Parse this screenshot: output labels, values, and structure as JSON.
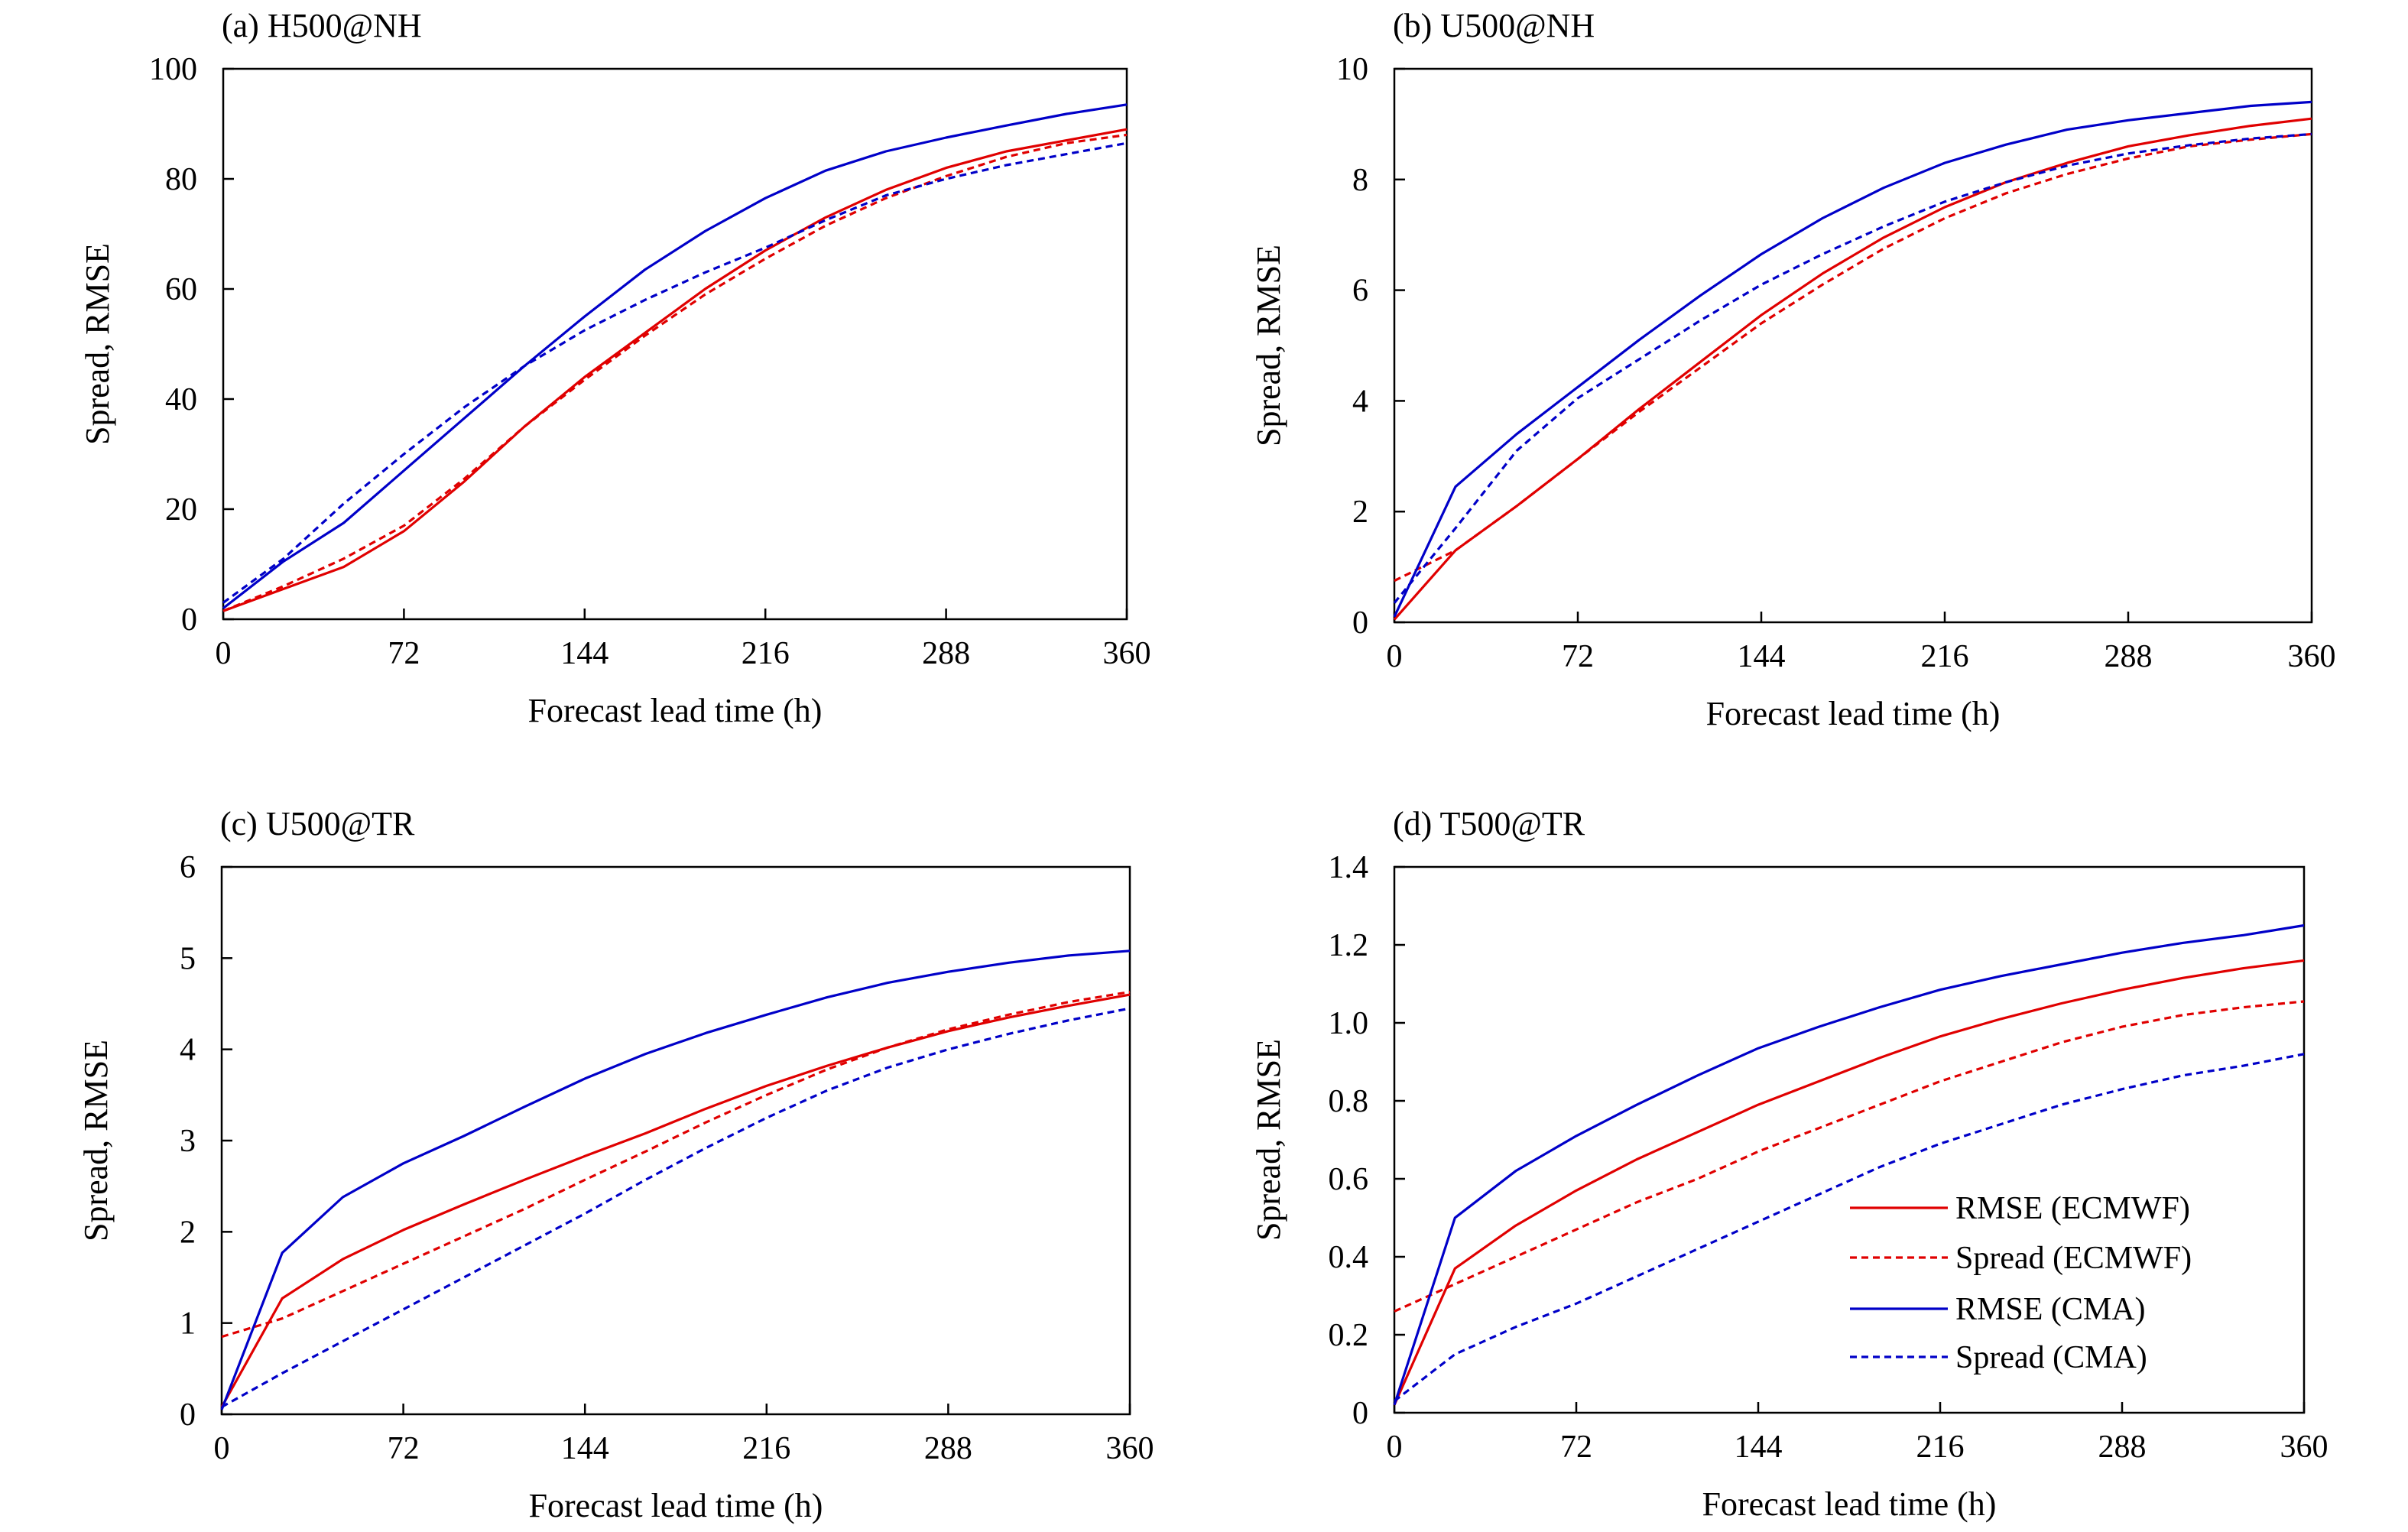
{
  "legend": [
    {
      "key": "rmse_ecmwf",
      "label": "RMSE (ECMWF)",
      "color": "#e00000",
      "dashed": false
    },
    {
      "key": "spread_ecmwf",
      "label": "Spread (ECMWF)",
      "color": "#e00000",
      "dashed": true
    },
    {
      "key": "rmse_cma",
      "label": "RMSE (CMA)",
      "color": "#0000c8",
      "dashed": false
    },
    {
      "key": "spread_cma",
      "label": "Spread (CMA)",
      "color": "#0000c8",
      "dashed": true
    }
  ],
  "chart_data": [
    {
      "type": "line",
      "title": "(a) H500@NH",
      "xlabel": "Forecast lead time (h)",
      "ylabel": "Spread, RMSE",
      "xlim": [
        0,
        360
      ],
      "ylim": [
        0,
        100
      ],
      "xticks": [
        "0",
        "72",
        "144",
        "216",
        "288",
        "360"
      ],
      "yticks": [
        "0",
        "20",
        "40",
        "60",
        "80",
        "100"
      ],
      "grid": false,
      "x": [
        0,
        24,
        48,
        72,
        96,
        120,
        144,
        168,
        192,
        216,
        240,
        264,
        288,
        312,
        336,
        360
      ],
      "series": [
        {
          "name": "RMSE (ECMWF)",
          "values": [
            1.5,
            5.5,
            9.5,
            16,
            25,
            35,
            44,
            52,
            60,
            67,
            73,
            78,
            82,
            85,
            87,
            89
          ]
        },
        {
          "name": "Spread (ECMWF)",
          "values": [
            1.5,
            6,
            11,
            17,
            25.5,
            35,
            43.5,
            51.5,
            59,
            65.5,
            71.5,
            76.5,
            80.5,
            84,
            86.5,
            88
          ]
        },
        {
          "name": "RMSE (CMA)",
          "values": [
            2,
            10.5,
            17.5,
            27,
            36.5,
            46,
            55,
            63.5,
            70.5,
            76.5,
            81.5,
            85,
            87.5,
            89.7,
            91.8,
            93.5
          ]
        },
        {
          "name": "Spread (CMA)",
          "values": [
            3,
            11,
            21,
            30,
            38.5,
            46,
            52.5,
            58,
            63,
            67.5,
            72.5,
            77,
            80,
            82.5,
            84.5,
            86.5
          ]
        }
      ]
    },
    {
      "type": "line",
      "title": "(b) U500@NH",
      "xlabel": "Forecast lead time (h)",
      "ylabel": "Spread, RMSE",
      "xlim": [
        0,
        360
      ],
      "ylim": [
        0,
        10
      ],
      "xticks": [
        "0",
        "72",
        "144",
        "216",
        "288",
        "360"
      ],
      "yticks": [
        "0",
        "2",
        "4",
        "6",
        "8",
        "10"
      ],
      "grid": false,
      "x": [
        0,
        24,
        48,
        72,
        96,
        120,
        144,
        168,
        192,
        216,
        240,
        264,
        288,
        312,
        336,
        360
      ],
      "series": [
        {
          "name": "RMSE (ECMWF)",
          "values": [
            0.05,
            1.3,
            2.1,
            2.95,
            3.85,
            4.7,
            5.55,
            6.3,
            6.95,
            7.5,
            7.95,
            8.3,
            8.6,
            8.8,
            8.97,
            9.1
          ]
        },
        {
          "name": "Spread (ECMWF)",
          "values": [
            0.75,
            1.3,
            2.1,
            2.95,
            3.8,
            4.6,
            5.4,
            6.1,
            6.75,
            7.3,
            7.75,
            8.1,
            8.38,
            8.6,
            8.72,
            8.82
          ]
        },
        {
          "name": "RMSE (CMA)",
          "values": [
            0.1,
            2.45,
            3.4,
            4.25,
            5.1,
            5.9,
            6.65,
            7.3,
            7.85,
            8.3,
            8.63,
            8.9,
            9.07,
            9.2,
            9.33,
            9.4
          ]
        },
        {
          "name": "Spread (CMA)",
          "values": [
            0.35,
            1.7,
            3.1,
            4.05,
            4.75,
            5.45,
            6.1,
            6.65,
            7.15,
            7.6,
            7.95,
            8.25,
            8.47,
            8.62,
            8.74,
            8.82
          ]
        }
      ]
    },
    {
      "type": "line",
      "title": "(c) U500@TR",
      "xlabel": "Forecast lead time (h)",
      "ylabel": "Spread, RMSE",
      "xlim": [
        0,
        360
      ],
      "ylim": [
        0,
        6
      ],
      "xticks": [
        "0",
        "72",
        "144",
        "216",
        "288",
        "360"
      ],
      "yticks": [
        "0",
        "1",
        "2",
        "3",
        "4",
        "5",
        "6"
      ],
      "grid": false,
      "x": [
        0,
        24,
        48,
        72,
        96,
        120,
        144,
        168,
        192,
        216,
        240,
        264,
        288,
        312,
        336,
        360
      ],
      "series": [
        {
          "name": "RMSE (ECMWF)",
          "values": [
            0.08,
            1.27,
            1.7,
            2.02,
            2.3,
            2.57,
            2.83,
            3.08,
            3.35,
            3.6,
            3.82,
            4.02,
            4.2,
            4.35,
            4.48,
            4.6
          ]
        },
        {
          "name": "Spread (ECMWF)",
          "values": [
            0.85,
            1.05,
            1.35,
            1.65,
            1.95,
            2.25,
            2.57,
            2.88,
            3.2,
            3.5,
            3.78,
            4.02,
            4.22,
            4.38,
            4.52,
            4.63
          ]
        },
        {
          "name": "RMSE (CMA)",
          "values": [
            0.05,
            1.77,
            2.38,
            2.75,
            3.05,
            3.37,
            3.68,
            3.95,
            4.18,
            4.38,
            4.57,
            4.73,
            4.85,
            4.95,
            5.03,
            5.08
          ]
        },
        {
          "name": "Spread (CMA)",
          "values": [
            0.08,
            0.45,
            0.8,
            1.15,
            1.5,
            1.85,
            2.2,
            2.57,
            2.92,
            3.25,
            3.55,
            3.8,
            4.0,
            4.17,
            4.32,
            4.45
          ]
        }
      ]
    },
    {
      "type": "line",
      "title": "(d) T500@TR",
      "xlabel": "Forecast lead time (h)",
      "ylabel": "Spread, RMSE",
      "xlim": [
        0,
        360
      ],
      "ylim": [
        0,
        1.4
      ],
      "xticks": [
        "0",
        "72",
        "144",
        "216",
        "288",
        "360"
      ],
      "yticks": [
        "0",
        "0.2",
        "0.4",
        "0.6",
        "0.8",
        "1.0",
        "1.2",
        "1.4"
      ],
      "grid": false,
      "legend_position": "bottom-right",
      "x": [
        0,
        24,
        48,
        72,
        96,
        120,
        144,
        168,
        192,
        216,
        240,
        264,
        288,
        312,
        336,
        360
      ],
      "series": [
        {
          "name": "RMSE (ECMWF)",
          "values": [
            0.02,
            0.37,
            0.48,
            0.57,
            0.65,
            0.72,
            0.79,
            0.85,
            0.91,
            0.965,
            1.01,
            1.05,
            1.085,
            1.115,
            1.14,
            1.16
          ]
        },
        {
          "name": "Spread (ECMWF)",
          "values": [
            0.26,
            0.33,
            0.4,
            0.47,
            0.54,
            0.6,
            0.67,
            0.73,
            0.79,
            0.85,
            0.9,
            0.95,
            0.99,
            1.02,
            1.04,
            1.055
          ]
        },
        {
          "name": "RMSE (CMA)",
          "values": [
            0.02,
            0.5,
            0.62,
            0.71,
            0.79,
            0.865,
            0.935,
            0.99,
            1.04,
            1.085,
            1.12,
            1.15,
            1.18,
            1.205,
            1.225,
            1.25
          ]
        },
        {
          "name": "Spread (CMA)",
          "values": [
            0.03,
            0.15,
            0.22,
            0.28,
            0.35,
            0.42,
            0.49,
            0.56,
            0.63,
            0.69,
            0.74,
            0.79,
            0.83,
            0.865,
            0.89,
            0.92
          ]
        }
      ]
    }
  ]
}
